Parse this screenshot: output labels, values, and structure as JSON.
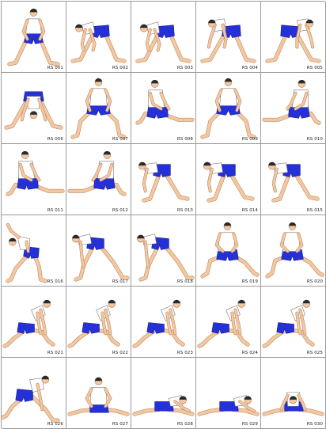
{
  "palette": {
    "skin": "#f3c8a0",
    "skin_outline": "#b07a55",
    "shirt": "#ffffff",
    "shorts": "#2430d8",
    "hair": "#2a2a2a",
    "grid_line": "#9a9a9a"
  },
  "poses": [
    {
      "code": "RS 001",
      "pose": "stand-wide"
    },
    {
      "code": "RS 002",
      "pose": "bend-center"
    },
    {
      "code": "RS 003",
      "pose": "bend-center"
    },
    {
      "code": "RS 004",
      "pose": "bend-left"
    },
    {
      "code": "RS 005",
      "pose": "bend-right"
    },
    {
      "code": "RS 006",
      "pose": "bend-deep"
    },
    {
      "code": "RS 007",
      "pose": "squat-wide"
    },
    {
      "code": "RS 008",
      "pose": "side-lunge-right"
    },
    {
      "code": "RS 009",
      "pose": "squat-wide"
    },
    {
      "code": "RS 010",
      "pose": "side-lunge-left"
    },
    {
      "code": "RS 011",
      "pose": "side-lunge-right"
    },
    {
      "code": "RS 012",
      "pose": "side-lunge-left"
    },
    {
      "code": "RS 013",
      "pose": "bend-side"
    },
    {
      "code": "RS 014",
      "pose": "bend-side"
    },
    {
      "code": "RS 015",
      "pose": "bend-side"
    },
    {
      "code": "RS 016",
      "pose": "side-reach"
    },
    {
      "code": "RS 017",
      "pose": "forward-stride"
    },
    {
      "code": "RS 018",
      "pose": "forward-stride"
    },
    {
      "code": "RS 019",
      "pose": "lunge-front"
    },
    {
      "code": "RS 020",
      "pose": "lunge-front"
    },
    {
      "code": "RS 021",
      "pose": "low-lunge"
    },
    {
      "code": "RS 022",
      "pose": "low-lunge"
    },
    {
      "code": "RS 023",
      "pose": "low-lunge"
    },
    {
      "code": "RS 024",
      "pose": "low-lunge"
    },
    {
      "code": "RS 025",
      "pose": "low-lunge"
    },
    {
      "code": "RS 026",
      "pose": "split-fold"
    },
    {
      "code": "RS 027",
      "pose": "seated-straddle"
    },
    {
      "code": "RS 028",
      "pose": "seated-fold"
    },
    {
      "code": "RS 029",
      "pose": "seated-fold"
    },
    {
      "code": "RS 030",
      "pose": "seated-fold-deep"
    }
  ]
}
